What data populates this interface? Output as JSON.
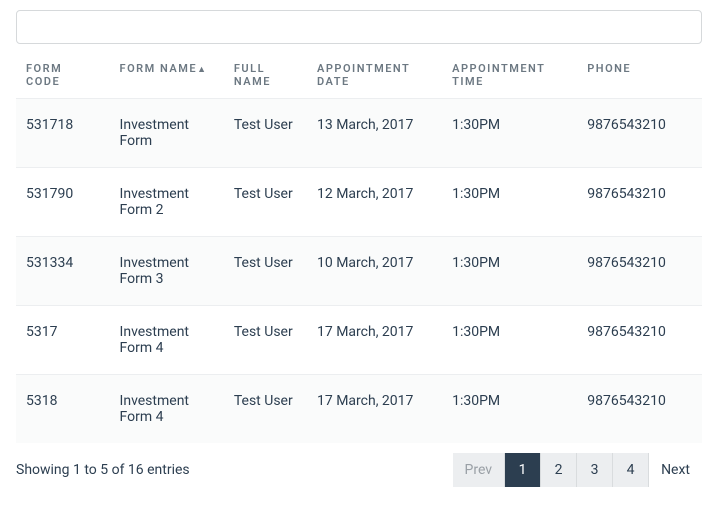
{
  "search": {
    "value": ""
  },
  "columns": [
    {
      "label": "FORM CODE",
      "key": "code",
      "sorted": false
    },
    {
      "label": "FORM NAME",
      "key": "name",
      "sorted": true
    },
    {
      "label": "FULL NAME",
      "key": "full",
      "sorted": false
    },
    {
      "label": "APPOINTMENT DATE",
      "key": "date",
      "sorted": false
    },
    {
      "label": "APPOINTMENT TIME",
      "key": "time",
      "sorted": false
    },
    {
      "label": "PHONE",
      "key": "phone",
      "sorted": false
    }
  ],
  "sort_icon": "▲",
  "rows": [
    {
      "code": "531718",
      "name": "Investment Form",
      "full": "Test User",
      "date": "13 March, 2017",
      "time": "1:30PM",
      "phone": "9876543210"
    },
    {
      "code": "531790",
      "name": "Investment Form 2",
      "full": "Test User",
      "date": "12 March, 2017",
      "time": "1:30PM",
      "phone": "9876543210"
    },
    {
      "code": "531334",
      "name": "Investment Form 3",
      "full": "Test User",
      "date": "10 March, 2017",
      "time": "1:30PM",
      "phone": "9876543210"
    },
    {
      "code": "5317",
      "name": "Investment Form 4",
      "full": "Test User",
      "date": "17 March, 2017",
      "time": "1:30PM",
      "phone": "9876543210"
    },
    {
      "code": "5318",
      "name": "Investment Form 4",
      "full": "Test User",
      "date": "17 March, 2017",
      "time": "1:30PM",
      "phone": "9876543210"
    }
  ],
  "entries_info": "Showing 1 to 5 of 16 entries",
  "pagination": {
    "prev_label": "Prev",
    "next_label": "Next",
    "pages": [
      "1",
      "2",
      "3",
      "4"
    ],
    "active": "1",
    "prev_disabled": true,
    "next_disabled": false
  },
  "colors": {
    "text": "#2c3e50",
    "header_text": "#6c7882",
    "border": "#d6d9db",
    "row_border": "#eceef0",
    "row_stripe": "#fafbfb",
    "pagination_bg": "#eceef0",
    "pagination_active_bg": "#2c3e50",
    "pagination_active_text": "#ffffff",
    "disabled_text": "#9aa0a6"
  }
}
